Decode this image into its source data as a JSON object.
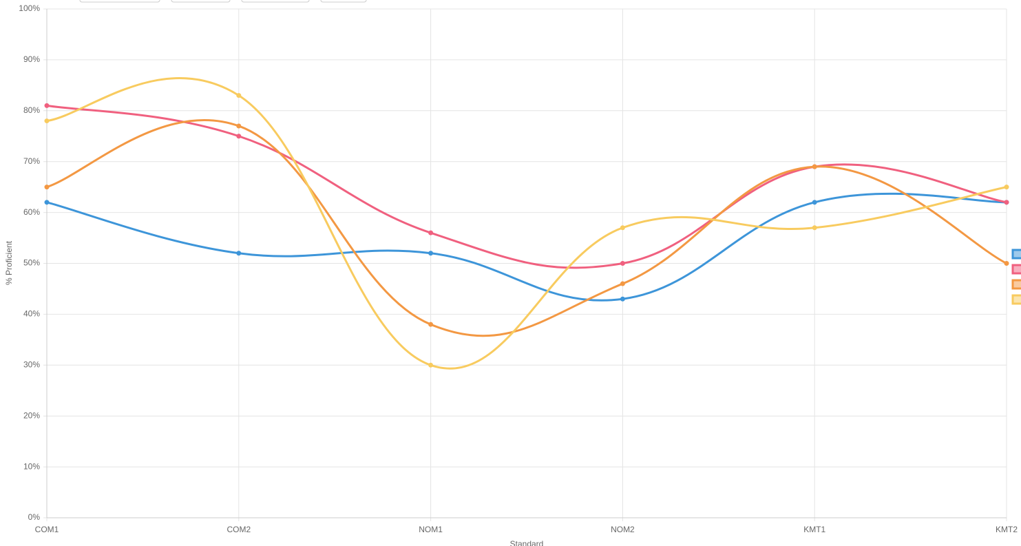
{
  "chart_data": {
    "type": "line",
    "categories": [
      "COM1",
      "COM2",
      "NOM1",
      "NOM2",
      "KMT1",
      "KMT2"
    ],
    "series": [
      {
        "color": "#3d95d9",
        "values": [
          62,
          52,
          52,
          43,
          62,
          62
        ]
      },
      {
        "color": "#f0607f",
        "values": [
          81,
          75,
          56,
          50,
          69,
          62
        ]
      },
      {
        "color": "#f39843",
        "values": [
          65,
          77,
          38,
          46,
          69,
          50
        ]
      },
      {
        "color": "#f8cb5f",
        "values": [
          78,
          83,
          30,
          57,
          57,
          65
        ]
      }
    ],
    "ylabel": "% Proficient",
    "xlabel": "Standard",
    "ylim": [
      0,
      100
    ],
    "yticks": [
      {
        "value": 0,
        "label": "0%"
      },
      {
        "value": 10,
        "label": "10%"
      },
      {
        "value": 20,
        "label": "20%"
      },
      {
        "value": 30,
        "label": "30%"
      },
      {
        "value": 40,
        "label": "40%"
      },
      {
        "value": 50,
        "label": "50%"
      },
      {
        "value": 60,
        "label": "60%"
      },
      {
        "value": 70,
        "label": "70%"
      },
      {
        "value": 80,
        "label": "80%"
      },
      {
        "value": 90,
        "label": "90%"
      },
      {
        "value": 100,
        "label": "100%"
      }
    ],
    "grid": true
  }
}
